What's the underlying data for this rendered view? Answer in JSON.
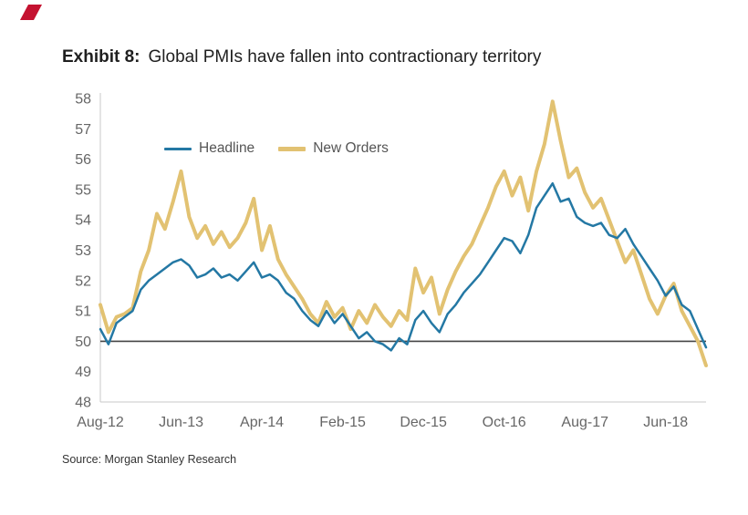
{
  "header": {
    "logo_icon": "red-flag-logo"
  },
  "title": {
    "exhibit": "Exhibit 8:",
    "text": "Global PMIs have fallen into contractionary territory"
  },
  "source": "Source: Morgan Stanley Research",
  "chart_data": {
    "type": "line",
    "title": "Global PMIs have fallen into contractionary territory",
    "xlabel": "",
    "ylabel": "",
    "ylim": [
      48,
      58
    ],
    "y_tick_step": 1,
    "reference_line": 50,
    "grid": false,
    "legend_position": "top-left-inside",
    "x": [
      "Aug-12",
      "Sep-12",
      "Oct-12",
      "Nov-12",
      "Dec-12",
      "Jan-13",
      "Feb-13",
      "Mar-13",
      "Apr-13",
      "May-13",
      "Jun-13",
      "Jul-13",
      "Aug-13",
      "Sep-13",
      "Oct-13",
      "Nov-13",
      "Dec-13",
      "Jan-14",
      "Feb-14",
      "Mar-14",
      "Apr-14",
      "May-14",
      "Jun-14",
      "Jul-14",
      "Aug-14",
      "Sep-14",
      "Oct-14",
      "Nov-14",
      "Dec-14",
      "Jan-15",
      "Feb-15",
      "Mar-15",
      "Apr-15",
      "May-15",
      "Jun-15",
      "Jul-15",
      "Aug-15",
      "Sep-15",
      "Oct-15",
      "Nov-15",
      "Dec-15",
      "Jan-16",
      "Feb-16",
      "Mar-16",
      "Apr-16",
      "May-16",
      "Jun-16",
      "Jul-16",
      "Aug-16",
      "Sep-16",
      "Oct-16",
      "Nov-16",
      "Dec-16",
      "Jan-17",
      "Feb-17",
      "Mar-17",
      "Apr-17",
      "May-17",
      "Jun-17",
      "Jul-17",
      "Aug-17",
      "Sep-17",
      "Oct-17",
      "Nov-17",
      "Dec-17",
      "Jan-18",
      "Feb-18",
      "Mar-18",
      "Apr-18",
      "May-18",
      "Jun-18",
      "Jul-18",
      "Aug-18",
      "Sep-18",
      "Oct-18",
      "Nov-18"
    ],
    "x_tick_indices": [
      0,
      10,
      20,
      30,
      40,
      50,
      60,
      70
    ],
    "x_tick_labels": [
      "Aug-12",
      "Jun-13",
      "Apr-14",
      "Feb-15",
      "Dec-15",
      "Oct-16",
      "Aug-17",
      "Jun-18"
    ],
    "series": [
      {
        "name": "Headline",
        "color": "#2478a4",
        "width": 2.5,
        "values": [
          50.4,
          49.9,
          50.6,
          50.8,
          51.0,
          51.7,
          52.0,
          52.2,
          52.4,
          52.6,
          52.7,
          52.5,
          52.1,
          52.2,
          52.4,
          52.1,
          52.2,
          52.0,
          52.3,
          52.6,
          52.1,
          52.2,
          52.0,
          51.6,
          51.4,
          51.0,
          50.7,
          50.5,
          51.0,
          50.6,
          50.9,
          50.5,
          50.1,
          50.3,
          50.0,
          49.9,
          49.7,
          50.1,
          49.9,
          50.7,
          51.0,
          50.6,
          50.3,
          50.9,
          51.2,
          51.6,
          51.9,
          52.2,
          52.6,
          53.0,
          53.4,
          53.3,
          52.9,
          53.5,
          54.4,
          54.8,
          55.2,
          54.6,
          54.7,
          54.1,
          53.9,
          53.8,
          53.9,
          53.5,
          53.4,
          53.7,
          53.2,
          52.8,
          52.4,
          52.0,
          51.5,
          51.8,
          51.2,
          51.0,
          50.4,
          49.8
        ]
      },
      {
        "name": "New Orders",
        "color": "#e2c272",
        "width": 4,
        "values": [
          51.2,
          50.3,
          50.8,
          50.9,
          51.1,
          52.3,
          53.0,
          54.2,
          53.7,
          54.6,
          55.6,
          54.1,
          53.4,
          53.8,
          53.2,
          53.6,
          53.1,
          53.4,
          53.9,
          54.7,
          53.0,
          53.8,
          52.7,
          52.2,
          51.8,
          51.4,
          50.9,
          50.6,
          51.3,
          50.8,
          51.1,
          50.4,
          51.0,
          50.6,
          51.2,
          50.8,
          50.5,
          51.0,
          50.7,
          52.4,
          51.6,
          52.1,
          50.9,
          51.7,
          52.3,
          52.8,
          53.2,
          53.8,
          54.4,
          55.1,
          55.6,
          54.8,
          55.4,
          54.3,
          55.6,
          56.5,
          57.9,
          56.6,
          55.4,
          55.7,
          54.9,
          54.4,
          54.7,
          54.0,
          53.3,
          52.6,
          53.0,
          52.2,
          51.4,
          50.9,
          51.5,
          51.9,
          51.0,
          50.5,
          50.0,
          49.2
        ]
      }
    ]
  }
}
